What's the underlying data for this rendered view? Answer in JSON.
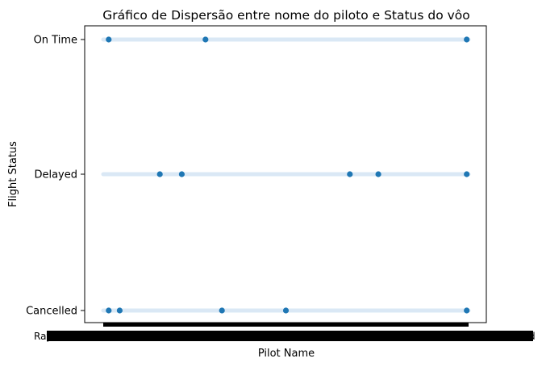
{
  "chart_data": {
    "type": "scatter",
    "title": "Gráfico de Dispersão entre nome do piloto e Status do vôo",
    "xlabel": "Pilot Name",
    "ylabel": "Flight Status",
    "y_categories": [
      "Cancelled",
      "Delayed",
      "On Time"
    ],
    "x_tick_labels_note": "Hundreds of overlapping pilot-name tick labels render as an illegible black band",
    "x_first_label": "Ray",
    "x_last_label": "d",
    "band_color": "#c6dbef",
    "point_color": "#1f77b4",
    "grid": false,
    "legend": "none",
    "points": [
      {
        "x": 0.015,
        "y": "On Time"
      },
      {
        "x": 0.28,
        "y": "On Time"
      },
      {
        "x": 0.995,
        "y": "On Time"
      },
      {
        "x": 0.155,
        "y": "Delayed"
      },
      {
        "x": 0.215,
        "y": "Delayed"
      },
      {
        "x": 0.675,
        "y": "Delayed"
      },
      {
        "x": 0.753,
        "y": "Delayed"
      },
      {
        "x": 0.995,
        "y": "Delayed"
      },
      {
        "x": 0.015,
        "y": "Cancelled"
      },
      {
        "x": 0.045,
        "y": "Cancelled"
      },
      {
        "x": 0.325,
        "y": "Cancelled"
      },
      {
        "x": 0.5,
        "y": "Cancelled"
      },
      {
        "x": 0.995,
        "y": "Cancelled"
      }
    ]
  }
}
